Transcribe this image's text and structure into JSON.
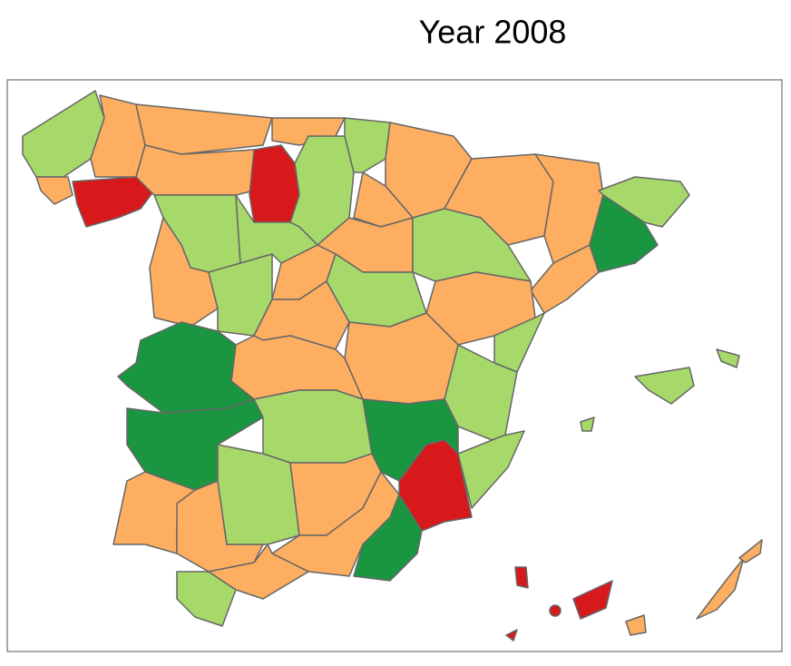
{
  "title": "Year 2008"
}
